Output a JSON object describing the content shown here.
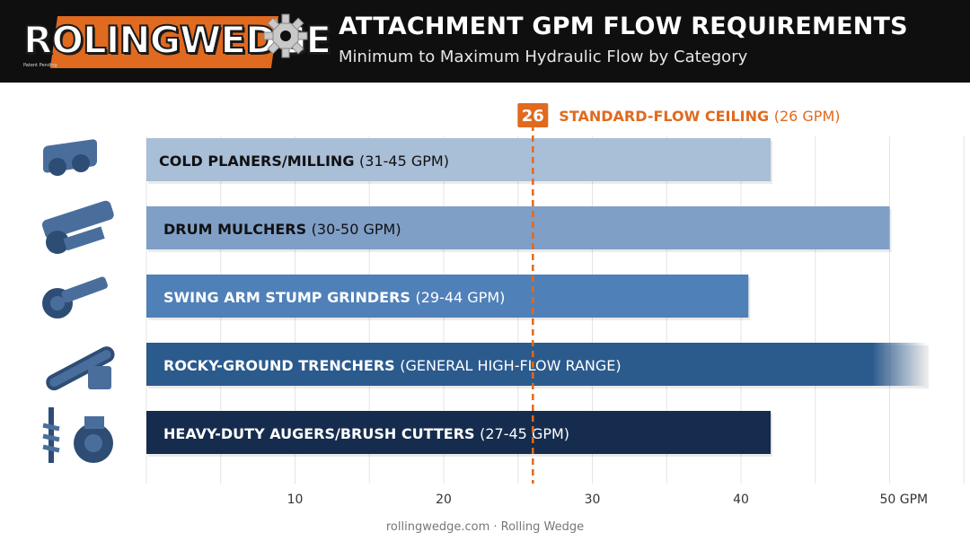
{
  "header": {
    "logo_text": "ROLINGWEDGE",
    "logo_registered": "®",
    "logo_tagline": "Patent Pending",
    "title": "ATTACHMENT GPM FLOW REQUIREMENTS",
    "subtitle": "Minimum to Maximum Hydraulic Flow by Category"
  },
  "footer": {
    "text": "rollingwedge.com · Rolling Wedge"
  },
  "colors": {
    "header_bg": "#0f0f10",
    "accent_orange": "#e06a1f",
    "bar_1": "#a9bed7",
    "bar_2": "#7f9fc7",
    "bar_3": "#5080b8",
    "bar_4": "#2b5a8d",
    "bar_5": "#152c4e"
  },
  "chart_data": {
    "type": "bar",
    "orientation": "horizontal",
    "x_unit_label": "GPM",
    "xlim": [
      0,
      55
    ],
    "xticks": [
      10,
      20,
      30,
      40,
      50
    ],
    "xtick_labels": [
      "10",
      "20",
      "30",
      "40",
      "50 GPM"
    ],
    "grid": true,
    "reference_line": {
      "value": 26,
      "badge": "26",
      "label_bold": "STANDARD-FLOW CEILING",
      "label_light": "(26 GPM)"
    },
    "bars": [
      {
        "category": "COLD PLANERS/MILLING",
        "range_text": "(31-45 GPM)",
        "min": 31,
        "max": 45,
        "value": 42,
        "color": "#a9bed7",
        "text_color": "#111111",
        "faded_end": false,
        "icon": "cold-planer-icon"
      },
      {
        "category": "DRUM MULCHERS",
        "range_text": "(30-50 GPM)",
        "min": 30,
        "max": 50,
        "value": 50,
        "color": "#7f9fc7",
        "text_color": "#111111",
        "faded_end": false,
        "icon": "drum-mulcher-icon"
      },
      {
        "category": "SWING ARM STUMP GRINDERS",
        "range_text": "(29-44 GPM)",
        "min": 29,
        "max": 44,
        "value": 40.5,
        "color": "#5080b8",
        "text_color": "#ffffff",
        "faded_end": false,
        "icon": "stump-grinder-icon"
      },
      {
        "category": "ROCKY-GROUND TRENCHERS",
        "range_text": "(GENERAL HIGH-FLOW RANGE)",
        "value": 52.5,
        "color": "#2b5a8d",
        "text_color": "#ffffff",
        "faded_end": true,
        "icon": "trencher-icon"
      },
      {
        "category": "HEAVY-DUTY AUGERS/BRUSH CUTTERS",
        "range_text": "(27-45 GPM)",
        "min": 27,
        "max": 45,
        "value": 42,
        "color": "#152c4e",
        "text_color": "#ffffff",
        "faded_end": false,
        "icon": "auger-brush-cutter-icon"
      }
    ]
  }
}
